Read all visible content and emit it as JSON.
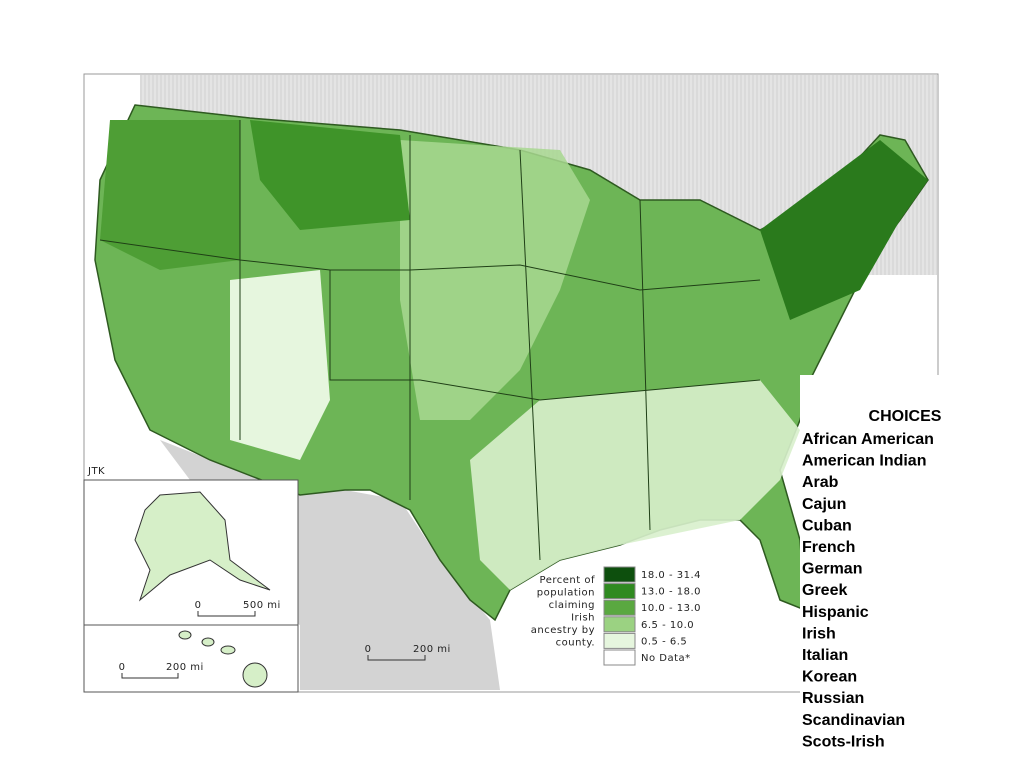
{
  "map": {
    "attribution": "JTK",
    "legend": {
      "title_lines": [
        "Percent of",
        "population",
        "claiming",
        "Irish",
        "ancestry by",
        "county."
      ],
      "items": [
        {
          "label": "18.0 - 31.4",
          "color": "#0d4f0d"
        },
        {
          "label": "13.0 - 18.0",
          "color": "#2f8a20"
        },
        {
          "label": "10.0 - 13.0",
          "color": "#5aa840"
        },
        {
          "label": "6.5 - 10.0",
          "color": "#9bd282"
        },
        {
          "label": "0.5 - 6.5",
          "color": "#e6f6de"
        },
        {
          "label": "No Data*",
          "color": "#ffffff"
        }
      ]
    },
    "scale_bars": [
      {
        "start": "0",
        "end": "500 mi"
      },
      {
        "start": "0",
        "end": "200 mi"
      },
      {
        "start": "0",
        "end": "200 mi"
      }
    ]
  },
  "choices": {
    "title": "CHOICES",
    "items": [
      "African American",
      "American Indian",
      "Arab",
      "Cajun",
      "Cuban",
      "French",
      "German",
      "Greek",
      "Hispanic",
      "Irish",
      "Italian",
      "Korean",
      "Russian",
      "Scandinavian",
      "Scots-Irish"
    ]
  }
}
